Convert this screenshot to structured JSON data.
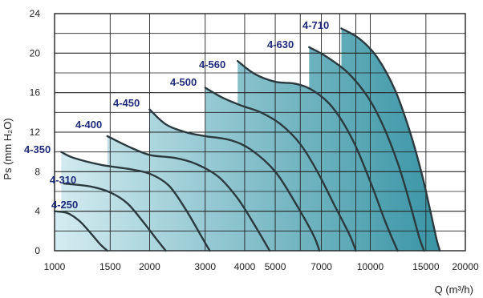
{
  "chart_data": {
    "type": "area",
    "title": "",
    "xlabel": "Q (m³/h)",
    "ylabel": "Ps (mm H₂O)",
    "x_scale": "log",
    "xlim": [
      1000,
      20000
    ],
    "ylim": [
      0,
      24
    ],
    "x_ticks": [
      1000,
      1500,
      2000,
      3000,
      4000,
      5000,
      7000,
      10000,
      15000,
      20000
    ],
    "x_tick_labels": [
      "1000",
      "1500",
      "2000",
      "3000",
      "4000",
      "5000",
      "7000",
      "10000",
      "15000",
      "20000"
    ],
    "y_ticks": [
      0,
      4,
      8,
      12,
      16,
      20,
      24
    ],
    "y_tick_labels": [
      "0",
      "4",
      "8",
      "12",
      "16",
      "20",
      "24"
    ],
    "grid": true,
    "colors": {
      "curve": "#2b3a3f",
      "fill_light": "#d4ecf1",
      "fill_dark": "#2f8fa0",
      "grid": "#222222",
      "label": "#1f2a78"
    },
    "series": [
      {
        "name": "4-250",
        "points": [
          [
            1000,
            4.0
          ],
          [
            1100,
            3.8
          ],
          [
            1200,
            3.0
          ],
          [
            1300,
            1.8
          ],
          [
            1400,
            0.6
          ],
          [
            1470,
            0
          ]
        ]
      },
      {
        "name": "4-310",
        "points": [
          [
            1070,
            6.8
          ],
          [
            1300,
            6.5
          ],
          [
            1500,
            5.9
          ],
          [
            1700,
            4.8
          ],
          [
            1900,
            3.0
          ],
          [
            2100,
            1.2
          ],
          [
            2250,
            0
          ]
        ]
      },
      {
        "name": "4-350",
        "points": [
          [
            1050,
            10.0
          ],
          [
            1150,
            9.4
          ],
          [
            1400,
            8.7
          ],
          [
            1700,
            8.3
          ],
          [
            2000,
            7.8
          ],
          [
            2300,
            6.6
          ],
          [
            2600,
            4.2
          ],
          [
            2900,
            1.6
          ],
          [
            3100,
            0
          ]
        ]
      },
      {
        "name": "4-400",
        "points": [
          [
            1470,
            11.6
          ],
          [
            1700,
            10.6
          ],
          [
            2000,
            9.7
          ],
          [
            2400,
            9.4
          ],
          [
            2800,
            8.8
          ],
          [
            3300,
            7.5
          ],
          [
            3800,
            5.3
          ],
          [
            4300,
            2.6
          ],
          [
            4800,
            0
          ]
        ]
      },
      {
        "name": "4-450",
        "points": [
          [
            2000,
            14.3
          ],
          [
            2250,
            12.8
          ],
          [
            2600,
            12.0
          ],
          [
            3000,
            11.6
          ],
          [
            3600,
            11.2
          ],
          [
            4200,
            10.2
          ],
          [
            5000,
            8.0
          ],
          [
            5800,
            4.8
          ],
          [
            6600,
            1.6
          ],
          [
            6900,
            0
          ]
        ]
      },
      {
        "name": "4-500",
        "points": [
          [
            3000,
            16.5
          ],
          [
            3400,
            15.5
          ],
          [
            3900,
            14.7
          ],
          [
            4500,
            14.0
          ],
          [
            5200,
            12.8
          ],
          [
            6000,
            10.8
          ],
          [
            6800,
            8.0
          ],
          [
            7700,
            4.6
          ],
          [
            8600,
            1.6
          ],
          [
            9000,
            0
          ]
        ]
      },
      {
        "name": "4-560",
        "points": [
          [
            3800,
            19.2
          ],
          [
            4300,
            17.9
          ],
          [
            5000,
            17.1
          ],
          [
            5800,
            16.9
          ],
          [
            6600,
            16.2
          ],
          [
            7600,
            14.5
          ],
          [
            8800,
            11.2
          ],
          [
            10000,
            7.0
          ],
          [
            11200,
            2.8
          ],
          [
            12200,
            0
          ]
        ]
      },
      {
        "name": "4-630",
        "points": [
          [
            6400,
            20.6
          ],
          [
            7300,
            19.6
          ],
          [
            8500,
            18.0
          ],
          [
            9800,
            15.6
          ],
          [
            11000,
            12.6
          ],
          [
            12300,
            8.6
          ],
          [
            13400,
            4.6
          ],
          [
            14300,
            1.3
          ],
          [
            14800,
            0
          ]
        ]
      },
      {
        "name": "4-710",
        "points": [
          [
            8100,
            22.5
          ],
          [
            9200,
            21.5
          ],
          [
            10500,
            19.6
          ],
          [
            12000,
            16.2
          ],
          [
            13300,
            12.2
          ],
          [
            14500,
            8.0
          ],
          [
            15500,
            4.0
          ],
          [
            16200,
            1.2
          ],
          [
            16600,
            0
          ]
        ]
      }
    ]
  }
}
